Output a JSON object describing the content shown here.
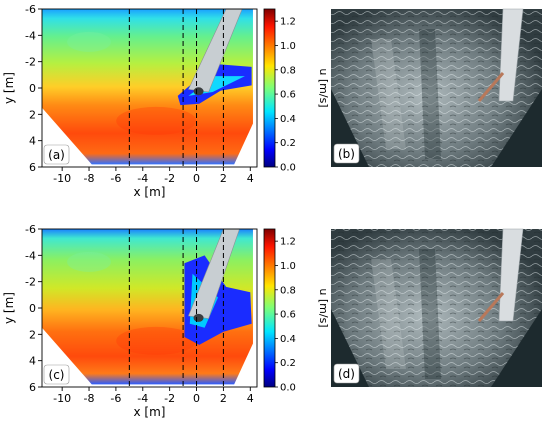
{
  "panels": [
    {
      "label": "(a)",
      "kind": "field",
      "variant": "a"
    },
    {
      "label": "(b)",
      "kind": "photo"
    },
    {
      "label": "(c)",
      "kind": "field",
      "variant": "c"
    },
    {
      "label": "(d)",
      "kind": "photo"
    }
  ],
  "axes": {
    "xlabel": "x [m]",
    "ylabel": "y [m]",
    "x_ticks": [
      -10,
      -8,
      -6,
      -4,
      -2,
      0,
      2,
      4
    ],
    "y_ticks": [
      -6,
      -4,
      -2,
      0,
      2,
      4,
      6
    ],
    "xlim": [
      -11.5,
      4.5
    ],
    "ylim": [
      -6,
      6
    ],
    "y_inverted": true,
    "dashed_lines_x": [
      -5,
      -1,
      0,
      2
    ]
  },
  "colorbar": {
    "label": "u [m/s]",
    "ticks": [
      0.0,
      0.2,
      0.4,
      0.6,
      0.8,
      1.0,
      1.2
    ],
    "tick_labels": [
      "0.0",
      "0.2",
      "0.4",
      "0.6",
      "0.8",
      "1.0",
      "1.2"
    ],
    "range": [
      0,
      1.3
    ],
    "colormap": "jet"
  },
  "colors": {
    "photo_bg": "#1d2a2e",
    "water_light": "#c9d4d6",
    "pole": "#d9dde0"
  }
}
